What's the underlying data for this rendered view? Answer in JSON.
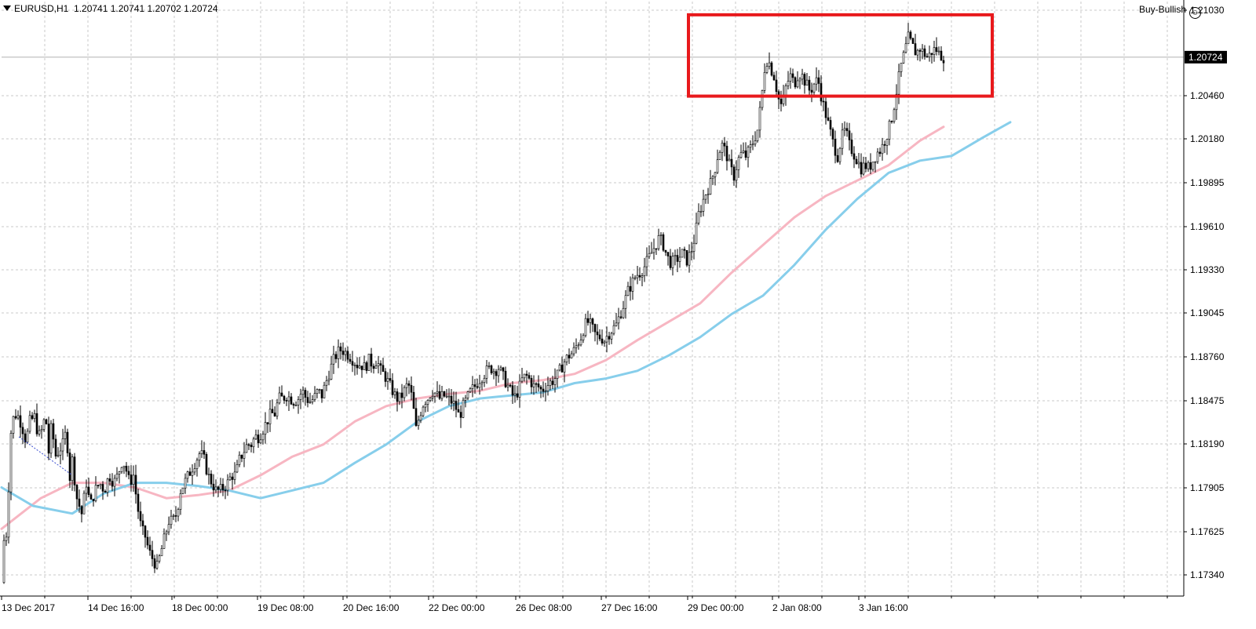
{
  "header": {
    "symbol": "EURUSD,H1",
    "ohlc": "1.20741 1.20741 1.20702 1.20724"
  },
  "signal": {
    "text": "Buy-Bullish",
    "icon": "smiley-icon"
  },
  "colors": {
    "grid": "#c8c8c8",
    "candle": "#000000",
    "ma_fast": "#f7b6c2",
    "ma_slow": "#87ceeb",
    "highlight": "#e8191c",
    "price_tag_bg": "#000000"
  },
  "chart_data": {
    "type": "candlestick",
    "timeframe": "H1",
    "current_price": 1.20724,
    "current_price_label": "1.20724",
    "y_ticks": [
      "1.21030",
      "1.20460",
      "1.20180",
      "1.19895",
      "1.19610",
      "1.19330",
      "1.19045",
      "1.18760",
      "1.18475",
      "1.18190",
      "1.17905",
      "1.17625",
      "1.17340"
    ],
    "x_ticks": [
      "13 Dec 2017",
      "14 Dec 16:00",
      "18 Dec 00:00",
      "19 Dec 08:00",
      "20 Dec 16:00",
      "22 Dec 00:00",
      "26 Dec 08:00",
      "27 Dec 16:00",
      "29 Dec 00:00",
      "2 Jan 08:00",
      "3 Jan 16:00"
    ],
    "ylim": [
      1.1725,
      1.2115
    ],
    "price_path": [
      [
        0,
        1.173
      ],
      [
        2,
        1.175
      ],
      [
        4,
        1.1765
      ],
      [
        7,
        1.176
      ],
      [
        11,
        1.1825
      ],
      [
        16,
        1.184
      ],
      [
        22,
        1.1838
      ],
      [
        27,
        1.183
      ],
      [
        31,
        1.1822
      ],
      [
        36,
        1.1835
      ],
      [
        42,
        1.1838
      ],
      [
        47,
        1.1825
      ],
      [
        52,
        1.183
      ],
      [
        56,
        1.184
      ],
      [
        60,
        1.1815
      ],
      [
        64,
        1.1835
      ],
      [
        68,
        1.1812
      ],
      [
        73,
        1.1816
      ],
      [
        78,
        1.182
      ],
      [
        83,
        1.183
      ],
      [
        86,
        1.1795
      ],
      [
        90,
        1.181
      ],
      [
        96,
        1.1785
      ],
      [
        102,
        1.1775
      ],
      [
        108,
        1.1795
      ],
      [
        113,
        1.178
      ],
      [
        119,
        1.179
      ],
      [
        125,
        1.1795
      ],
      [
        131,
        1.179
      ],
      [
        137,
        1.18
      ],
      [
        143,
        1.1795
      ],
      [
        148,
        1.18
      ],
      [
        154,
        1.181
      ],
      [
        158,
        1.1805
      ],
      [
        163,
        1.1795
      ],
      [
        168,
        1.18
      ],
      [
        173,
        1.178
      ],
      [
        178,
        1.1765
      ],
      [
        183,
        1.176
      ],
      [
        188,
        1.175
      ],
      [
        193,
        1.1745
      ],
      [
        198,
        1.174
      ],
      [
        203,
        1.175
      ],
      [
        208,
        1.176
      ],
      [
        213,
        1.177
      ],
      [
        218,
        1.177
      ],
      [
        223,
        1.1775
      ],
      [
        228,
        1.179
      ],
      [
        233,
        1.1795
      ],
      [
        238,
        1.18
      ],
      [
        243,
        1.1805
      ],
      [
        248,
        1.181
      ],
      [
        253,
        1.1815
      ],
      [
        258,
        1.181
      ],
      [
        263,
        1.18
      ],
      [
        268,
        1.1795
      ],
      [
        273,
        1.179
      ],
      [
        278,
        1.179
      ],
      [
        283,
        1.1792
      ],
      [
        288,
        1.1795
      ],
      [
        293,
        1.18
      ],
      [
        298,
        1.18
      ],
      [
        303,
        1.181
      ],
      [
        308,
        1.1815
      ],
      [
        313,
        1.182
      ],
      [
        318,
        1.182
      ],
      [
        323,
        1.1825
      ],
      [
        328,
        1.1825
      ],
      [
        333,
        1.183
      ],
      [
        338,
        1.1835
      ],
      [
        343,
        1.184
      ],
      [
        348,
        1.184
      ],
      [
        353,
        1.185
      ],
      [
        358,
        1.185
      ],
      [
        363,
        1.1852
      ],
      [
        368,
        1.185
      ],
      [
        373,
        1.1848
      ],
      [
        378,
        1.185
      ],
      [
        383,
        1.1855
      ],
      [
        388,
        1.185
      ],
      [
        393,
        1.1848
      ],
      [
        398,
        1.185
      ],
      [
        403,
        1.1855
      ],
      [
        408,
        1.1852
      ],
      [
        413,
        1.186
      ],
      [
        418,
        1.1868
      ],
      [
        423,
        1.1875
      ],
      [
        428,
        1.188
      ],
      [
        433,
        1.1882
      ],
      [
        438,
        1.188
      ],
      [
        443,
        1.1878
      ],
      [
        448,
        1.1875
      ],
      [
        453,
        1.1872
      ],
      [
        458,
        1.1872
      ],
      [
        463,
        1.187
      ],
      [
        468,
        1.1875
      ],
      [
        473,
        1.1872
      ],
      [
        478,
        1.1875
      ],
      [
        483,
        1.1868
      ],
      [
        488,
        1.1865
      ],
      [
        493,
        1.186
      ],
      [
        498,
        1.1855
      ],
      [
        503,
        1.185
      ],
      [
        508,
        1.185
      ],
      [
        513,
        1.1855
      ],
      [
        518,
        1.186
      ],
      [
        523,
        1.185
      ],
      [
        528,
        1.183
      ],
      [
        533,
        1.184
      ],
      [
        538,
        1.1848
      ],
      [
        543,
        1.185
      ],
      [
        548,
        1.1855
      ],
      [
        553,
        1.1853
      ],
      [
        558,
        1.185
      ],
      [
        563,
        1.1852
      ],
      [
        568,
        1.185
      ],
      [
        573,
        1.1848
      ],
      [
        578,
        1.1845
      ],
      [
        583,
        1.1838
      ],
      [
        588,
        1.1845
      ],
      [
        593,
        1.185
      ],
      [
        598,
        1.1855
      ],
      [
        603,
        1.1858
      ],
      [
        608,
        1.1862
      ],
      [
        613,
        1.1865
      ],
      [
        618,
        1.1868
      ],
      [
        623,
        1.187
      ],
      [
        628,
        1.1868
      ],
      [
        633,
        1.187
      ],
      [
        638,
        1.1865
      ],
      [
        643,
        1.186
      ],
      [
        648,
        1.1855
      ],
      [
        653,
        1.185
      ],
      [
        658,
        1.1855
      ],
      [
        663,
        1.1862
      ],
      [
        668,
        1.1865
      ],
      [
        673,
        1.1862
      ],
      [
        678,
        1.1858
      ],
      [
        683,
        1.1858
      ],
      [
        688,
        1.1855
      ],
      [
        693,
        1.1858
      ],
      [
        698,
        1.186
      ],
      [
        703,
        1.1862
      ],
      [
        708,
        1.1865
      ],
      [
        713,
        1.187
      ],
      [
        718,
        1.1875
      ],
      [
        723,
        1.1878
      ],
      [
        728,
        1.188
      ],
      [
        733,
        1.1885
      ],
      [
        738,
        1.189
      ],
      [
        743,
        1.1898
      ],
      [
        748,
        1.19
      ],
      [
        753,
        1.1895
      ],
      [
        758,
        1.189
      ],
      [
        763,
        1.189
      ],
      [
        768,
        1.1888
      ],
      [
        773,
        1.1892
      ],
      [
        778,
        1.1895
      ],
      [
        783,
        1.1898
      ],
      [
        788,
        1.1905
      ],
      [
        793,
        1.1912
      ],
      [
        798,
        1.192
      ],
      [
        803,
        1.1925
      ],
      [
        808,
        1.193
      ],
      [
        813,
        1.1932
      ],
      [
        818,
        1.1935
      ],
      [
        823,
        1.194
      ],
      [
        828,
        1.1945
      ],
      [
        833,
        1.195
      ],
      [
        838,
        1.1955
      ],
      [
        843,
        1.195
      ],
      [
        848,
        1.1942
      ],
      [
        853,
        1.1938
      ],
      [
        858,
        1.194
      ],
      [
        863,
        1.1942
      ],
      [
        868,
        1.1945
      ],
      [
        873,
        1.194
      ],
      [
        878,
        1.1945
      ],
      [
        883,
        1.1955
      ],
      [
        888,
        1.197
      ],
      [
        893,
        1.1978
      ],
      [
        898,
        1.1985
      ],
      [
        903,
        1.199
      ],
      [
        908,
        1.1998
      ],
      [
        913,
        1.201
      ],
      [
        918,
        1.2015
      ],
      [
        923,
        1.201
      ],
      [
        928,
        1.2
      ],
      [
        933,
        1.1995
      ],
      [
        938,
        1.2005
      ],
      [
        943,
        1.201
      ],
      [
        948,
        1.2008
      ],
      [
        953,
        1.2012
      ],
      [
        958,
        1.2018
      ],
      [
        963,
        1.2025
      ],
      [
        968,
        1.2045
      ],
      [
        972,
        1.2065
      ],
      [
        976,
        1.2072
      ],
      [
        980,
        1.2065
      ],
      [
        984,
        1.206
      ],
      [
        988,
        1.205
      ],
      [
        992,
        1.204
      ],
      [
        996,
        1.2045
      ],
      [
        1000,
        1.2055
      ],
      [
        1005,
        1.206
      ],
      [
        1010,
        1.2055
      ],
      [
        1015,
        1.2062
      ],
      [
        1020,
        1.206
      ],
      [
        1025,
        1.2055
      ],
      [
        1030,
        1.205
      ],
      [
        1035,
        1.2055
      ],
      [
        1040,
        1.2058
      ],
      [
        1045,
        1.2045
      ],
      [
        1050,
        1.2035
      ],
      [
        1055,
        1.2025
      ],
      [
        1060,
        1.2015
      ],
      [
        1065,
        1.2008
      ],
      [
        1070,
        1.202
      ],
      [
        1075,
        1.2025
      ],
      [
        1080,
        1.2015
      ],
      [
        1085,
        1.201
      ],
      [
        1090,
        1.2005
      ],
      [
        1095,
        1.2
      ],
      [
        1100,
        1.2002
      ],
      [
        1105,
        1.2
      ],
      [
        1110,
        1.2005
      ],
      [
        1115,
        1.201
      ],
      [
        1120,
        1.2012
      ],
      [
        1125,
        1.2018
      ],
      [
        1130,
        1.2025
      ],
      [
        1135,
        1.2035
      ],
      [
        1140,
        1.205
      ],
      [
        1145,
        1.2065
      ],
      [
        1150,
        1.2075
      ],
      [
        1155,
        1.2085
      ],
      [
        1160,
        1.208
      ],
      [
        1165,
        1.2075
      ],
      [
        1170,
        1.2078
      ],
      [
        1175,
        1.2075
      ],
      [
        1180,
        1.2072
      ],
      [
        1185,
        1.2076
      ],
      [
        1190,
        1.2078
      ],
      [
        1195,
        1.2074
      ],
      [
        1200,
        1.20724
      ]
    ],
    "series": [
      {
        "type": "moving-average",
        "color": "#f7b6c2",
        "points": [
          [
            0,
            1.1765
          ],
          [
            50,
            1.1785
          ],
          [
            90,
            1.1795
          ],
          [
            130,
            1.1795
          ],
          [
            170,
            1.1792
          ],
          [
            210,
            1.1785
          ],
          [
            250,
            1.1787
          ],
          [
            290,
            1.179
          ],
          [
            330,
            1.18
          ],
          [
            370,
            1.1812
          ],
          [
            410,
            1.182
          ],
          [
            450,
            1.1835
          ],
          [
            490,
            1.1845
          ],
          [
            530,
            1.185
          ],
          [
            570,
            1.1853
          ],
          [
            610,
            1.1855
          ],
          [
            650,
            1.186
          ],
          [
            690,
            1.1862
          ],
          [
            730,
            1.1866
          ],
          [
            770,
            1.1875
          ],
          [
            810,
            1.1888
          ],
          [
            850,
            1.19
          ],
          [
            890,
            1.1912
          ],
          [
            930,
            1.1932
          ],
          [
            970,
            1.195
          ],
          [
            1010,
            1.1968
          ],
          [
            1050,
            1.1982
          ],
          [
            1090,
            1.1992
          ],
          [
            1130,
            1.2002
          ],
          [
            1170,
            1.2018
          ],
          [
            1200,
            1.2027
          ]
        ]
      },
      {
        "type": "moving-average",
        "color": "#87ceeb",
        "points": [
          [
            0,
            1.1792
          ],
          [
            40,
            1.178
          ],
          [
            90,
            1.1775
          ],
          [
            130,
            1.1788
          ],
          [
            170,
            1.1795
          ],
          [
            210,
            1.1795
          ],
          [
            250,
            1.1793
          ],
          [
            290,
            1.179
          ],
          [
            330,
            1.1785
          ],
          [
            370,
            1.179
          ],
          [
            410,
            1.1795
          ],
          [
            450,
            1.1808
          ],
          [
            490,
            1.182
          ],
          [
            530,
            1.1835
          ],
          [
            570,
            1.1845
          ],
          [
            610,
            1.185
          ],
          [
            650,
            1.1852
          ],
          [
            690,
            1.1854
          ],
          [
            730,
            1.186
          ],
          [
            770,
            1.1863
          ],
          [
            810,
            1.1868
          ],
          [
            850,
            1.1878
          ],
          [
            890,
            1.189
          ],
          [
            930,
            1.1905
          ],
          [
            970,
            1.1917
          ],
          [
            1010,
            1.1937
          ],
          [
            1050,
            1.196
          ],
          [
            1090,
            1.198
          ],
          [
            1130,
            1.1997
          ],
          [
            1170,
            1.2005
          ],
          [
            1210,
            1.2008
          ],
          [
            1250,
            1.202
          ],
          [
            1285,
            1.203
          ]
        ]
      }
    ],
    "annotations": [
      {
        "type": "rectangle",
        "color": "#e8191c",
        "x_from": 875,
        "x_to": 1262,
        "y_from": 1.21,
        "y_to": 1.2047
      },
      {
        "type": "trendline",
        "style": "dotted",
        "color": "#3b4fd1",
        "x_from": 22,
        "x_to": 90,
        "y_from": 1.1825,
        "y_to": 1.18
      }
    ]
  }
}
